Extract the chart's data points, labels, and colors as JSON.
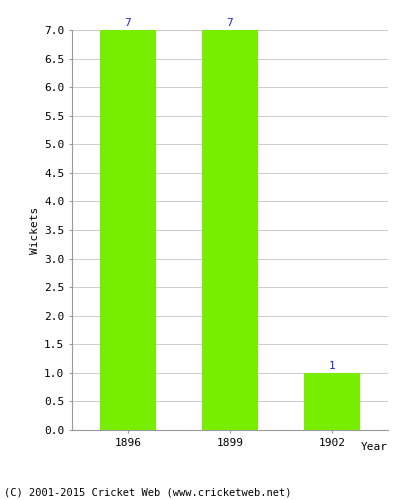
{
  "categories": [
    "1896",
    "1899",
    "1902"
  ],
  "values": [
    7,
    7,
    1
  ],
  "bar_color": "#77ee00",
  "title": "",
  "xlabel": "Year",
  "ylabel": "Wickets",
  "ylim": [
    0,
    7.0
  ],
  "yticks": [
    0.0,
    0.5,
    1.0,
    1.5,
    2.0,
    2.5,
    3.0,
    3.5,
    4.0,
    4.5,
    5.0,
    5.5,
    6.0,
    6.5,
    7.0
  ],
  "annotation_color": "#2222cc",
  "annotation_fontsize": 8,
  "ylabel_fontsize": 8,
  "tick_fontsize": 8,
  "bar_width": 0.55,
  "grid_color": "#cccccc",
  "background_color": "#ffffff",
  "footer_text": "(C) 2001-2015 Cricket Web (www.cricketweb.net)",
  "footer_fontsize": 7.5
}
